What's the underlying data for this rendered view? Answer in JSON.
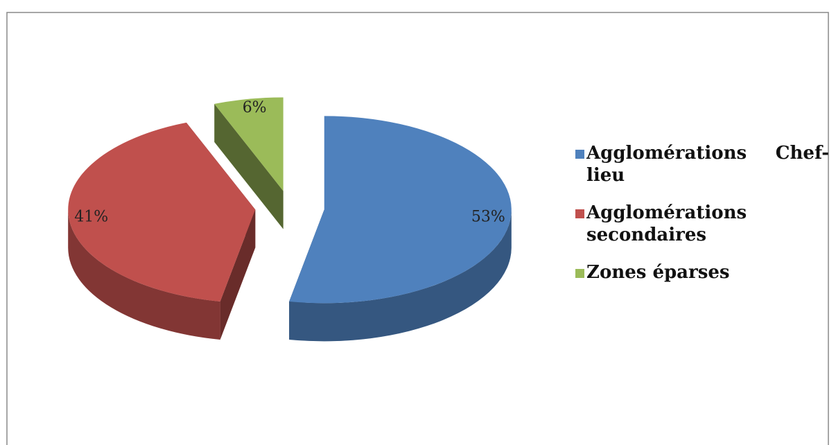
{
  "chart_data": {
    "type": "pie",
    "categories": [
      "Agglomérations Chef-lieu",
      "Agglomérations secondaires",
      "Zones éparses"
    ],
    "values": [
      53,
      41,
      6
    ],
    "value_labels": [
      "53%",
      "41%",
      "6%"
    ],
    "colors": [
      "#4f81bd",
      "#c0504d",
      "#9bbb59"
    ],
    "legend": "right"
  }
}
